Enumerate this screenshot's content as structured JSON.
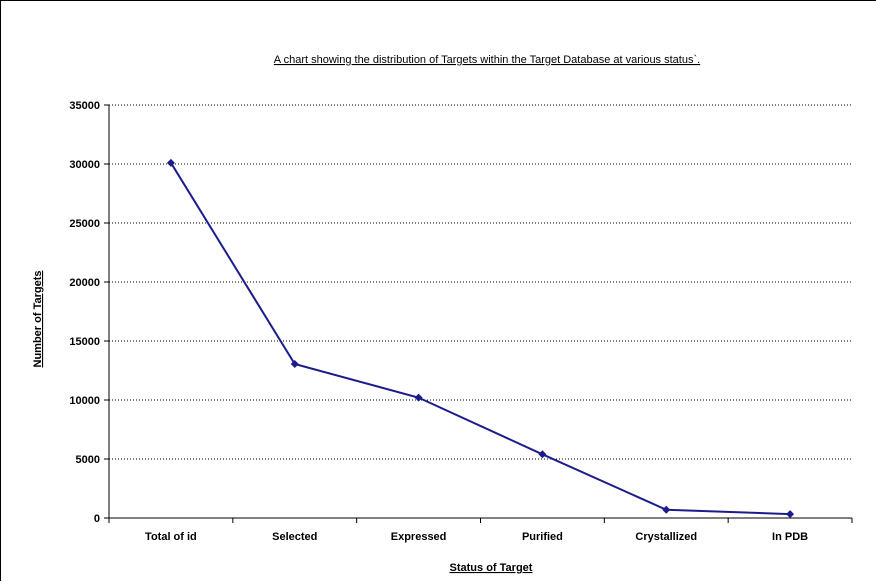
{
  "chart_data": {
    "type": "line",
    "title": "A chart showing the distribution of Targets within the Target Database at various status`.",
    "xlabel": "Status of Target",
    "ylabel": "Number of Targets",
    "categories": [
      "Total of id",
      "Selected",
      "Expressed",
      "Purified",
      "Crystallized",
      "In PDB"
    ],
    "series": [
      {
        "values": [
          30100,
          13050,
          10200,
          5400,
          700,
          330
        ]
      }
    ],
    "ylim": [
      0,
      35000
    ],
    "yticks": [
      0,
      5000,
      10000,
      15000,
      20000,
      25000,
      30000,
      35000
    ],
    "grid": true,
    "legend": "none",
    "colors": {
      "line": "#1c1c8c",
      "marker": "#1c1c8c",
      "grid": "#000000",
      "axis": "#000000"
    }
  }
}
